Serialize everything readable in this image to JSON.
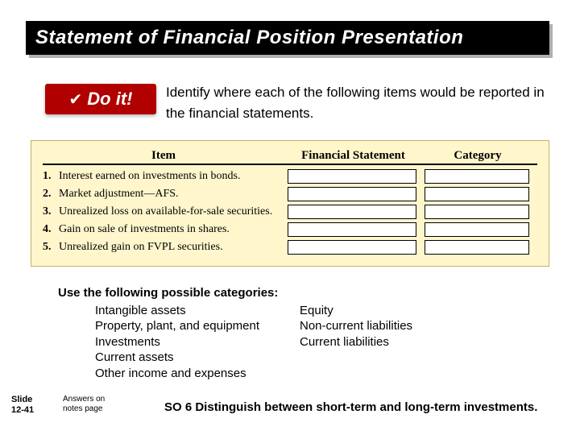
{
  "title": "Statement of Financial Position Presentation",
  "doit_label": "Do it!",
  "instruction": "Identify where each of the following items would be reported in the financial statements.",
  "table": {
    "headers": {
      "item": "Item",
      "fs": "Financial Statement",
      "cat": "Category"
    },
    "rows": [
      {
        "num": "1.",
        "item": "Interest earned on investments in bonds."
      },
      {
        "num": "2.",
        "item": "Market adjustment—AFS."
      },
      {
        "num": "3.",
        "item": "Unrealized loss on available-for-sale securities."
      },
      {
        "num": "4.",
        "item": "Gain on sale of investments in shares."
      },
      {
        "num": "5.",
        "item": "Unrealized gain on FVPL securities."
      }
    ]
  },
  "categories": {
    "heading": "Use the following possible categories:",
    "col1": [
      "Intangible assets",
      "Property, plant, and equipment",
      "Investments",
      "Current assets",
      "Other income and expenses"
    ],
    "col2": [
      "Equity",
      "Non-current liabilities",
      "Current liabilities"
    ]
  },
  "slide_label_line1": "Slide",
  "slide_label_line2": "12-41",
  "answers_note_line1": "Answers on",
  "answers_note_line2": "notes page",
  "so_line": "SO 6  Distinguish between short-term and long-term investments.",
  "colors": {
    "title_bg": "#000000",
    "title_text": "#ffffff",
    "badge_bg": "#b00000",
    "table_bg": "#fff6cc"
  }
}
